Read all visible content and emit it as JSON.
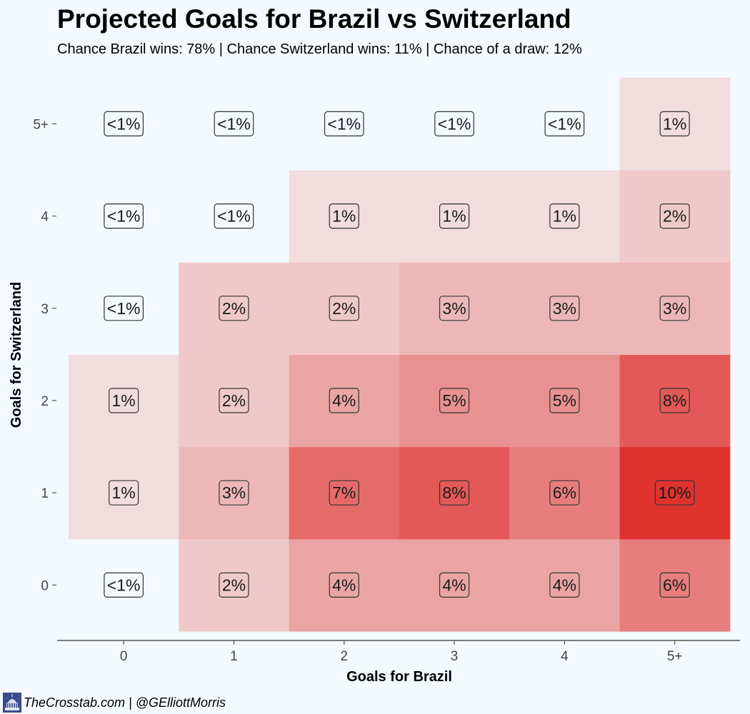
{
  "header": {
    "title": "Projected Goals for Brazil vs Switzerland",
    "subtitle": "Chance Brazil wins: 78% | Chance Switzerland wins: 11% | Chance of a draw: 12%"
  },
  "footer": {
    "credit": "TheCrosstab.com | @GElliottMorris",
    "logo_icon": "capitol-building-icon"
  },
  "colors": {
    "background": "#f3f9ff",
    "cell_low": "#f3eff1",
    "cell_high": "#df3330"
  },
  "chart_data": {
    "type": "heatmap",
    "xlabel": "Goals for Brazil",
    "ylabel": "Goals for Switzerland",
    "x_categories": [
      "0",
      "1",
      "2",
      "3",
      "4",
      "5+"
    ],
    "y_categories": [
      "0",
      "1",
      "2",
      "3",
      "4",
      "5+"
    ],
    "cells": [
      {
        "x": "0",
        "y": "0",
        "value": 0.4,
        "label": "<1%"
      },
      {
        "x": "1",
        "y": "0",
        "value": 2,
        "label": "2%"
      },
      {
        "x": "2",
        "y": "0",
        "value": 4,
        "label": "4%"
      },
      {
        "x": "3",
        "y": "0",
        "value": 4,
        "label": "4%"
      },
      {
        "x": "4",
        "y": "0",
        "value": 4,
        "label": "4%"
      },
      {
        "x": "5+",
        "y": "0",
        "value": 6,
        "label": "6%"
      },
      {
        "x": "0",
        "y": "1",
        "value": 1,
        "label": "1%"
      },
      {
        "x": "1",
        "y": "1",
        "value": 3,
        "label": "3%"
      },
      {
        "x": "2",
        "y": "1",
        "value": 7,
        "label": "7%"
      },
      {
        "x": "3",
        "y": "1",
        "value": 8,
        "label": "8%"
      },
      {
        "x": "4",
        "y": "1",
        "value": 6,
        "label": "6%"
      },
      {
        "x": "5+",
        "y": "1",
        "value": 10,
        "label": "10%"
      },
      {
        "x": "0",
        "y": "2",
        "value": 1,
        "label": "1%"
      },
      {
        "x": "1",
        "y": "2",
        "value": 2,
        "label": "2%"
      },
      {
        "x": "2",
        "y": "2",
        "value": 4,
        "label": "4%"
      },
      {
        "x": "3",
        "y": "2",
        "value": 5,
        "label": "5%"
      },
      {
        "x": "4",
        "y": "2",
        "value": 5,
        "label": "5%"
      },
      {
        "x": "5+",
        "y": "2",
        "value": 8,
        "label": "8%"
      },
      {
        "x": "0",
        "y": "3",
        "value": 0.4,
        "label": "<1%"
      },
      {
        "x": "1",
        "y": "3",
        "value": 2,
        "label": "2%"
      },
      {
        "x": "2",
        "y": "3",
        "value": 2,
        "label": "2%"
      },
      {
        "x": "3",
        "y": "3",
        "value": 3,
        "label": "3%"
      },
      {
        "x": "4",
        "y": "3",
        "value": 3,
        "label": "3%"
      },
      {
        "x": "5+",
        "y": "3",
        "value": 3,
        "label": "3%"
      },
      {
        "x": "0",
        "y": "4",
        "value": 0.4,
        "label": "<1%"
      },
      {
        "x": "1",
        "y": "4",
        "value": 0.4,
        "label": "<1%"
      },
      {
        "x": "2",
        "y": "4",
        "value": 1,
        "label": "1%"
      },
      {
        "x": "3",
        "y": "4",
        "value": 1,
        "label": "1%"
      },
      {
        "x": "4",
        "y": "4",
        "value": 1,
        "label": "1%"
      },
      {
        "x": "5+",
        "y": "4",
        "value": 2,
        "label": "2%"
      },
      {
        "x": "0",
        "y": "5+",
        "value": 0.4,
        "label": "<1%"
      },
      {
        "x": "1",
        "y": "5+",
        "value": 0.4,
        "label": "<1%"
      },
      {
        "x": "2",
        "y": "5+",
        "value": 0.4,
        "label": "<1%"
      },
      {
        "x": "3",
        "y": "5+",
        "value": 0.4,
        "label": "<1%"
      },
      {
        "x": "4",
        "y": "5+",
        "value": 0.4,
        "label": "<1%"
      },
      {
        "x": "5+",
        "y": "5+",
        "value": 1,
        "label": "1%"
      }
    ]
  }
}
